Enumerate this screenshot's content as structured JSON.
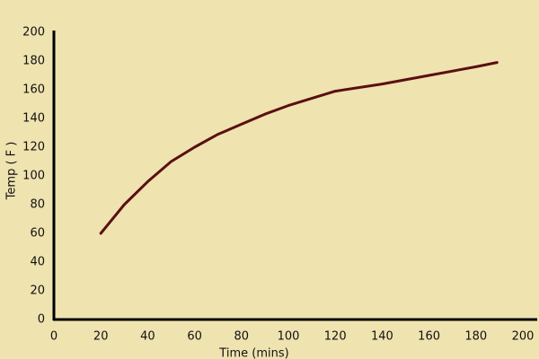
{
  "chart_data": {
    "type": "line",
    "x_label": "Time (mins)",
    "y_label": "Temp ( F )",
    "x": [
      20,
      30,
      40,
      50,
      60,
      70,
      80,
      90,
      100,
      110,
      120,
      140,
      160,
      180,
      189
    ],
    "values": [
      60,
      80,
      96,
      110,
      120,
      129,
      136,
      143,
      149,
      154,
      159,
      164,
      170,
      176,
      179
    ],
    "color": "#5a0f10",
    "xlim": [
      0,
      200
    ],
    "xticks": [
      0,
      20,
      40,
      60,
      80,
      100,
      120,
      140,
      160,
      180,
      200
    ],
    "ylim": [
      0,
      200
    ],
    "yticks": [
      0,
      20,
      40,
      60,
      80,
      100,
      120,
      140,
      160,
      180,
      200
    ],
    "grid": false
  }
}
